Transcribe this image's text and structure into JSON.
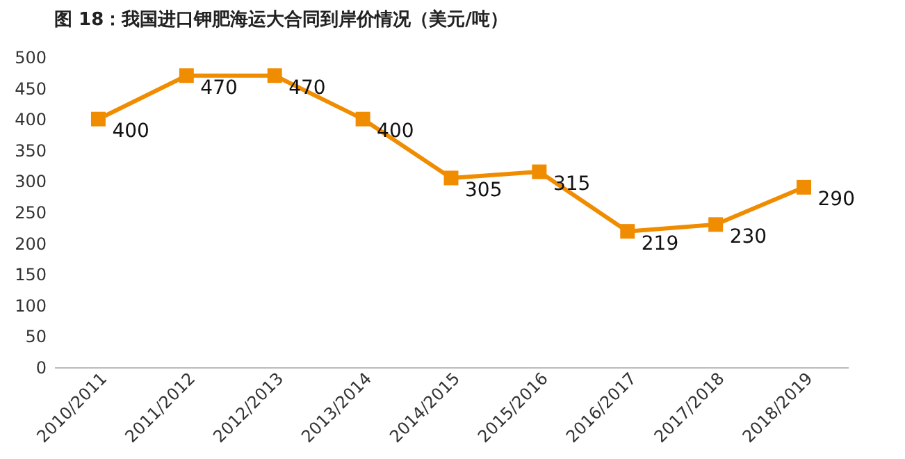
{
  "chart_data": {
    "type": "line",
    "title": "图 18：我国进口钾肥海运大合同到岸价情况（美元/吨）",
    "categories": [
      "2010/2011",
      "2011/2012",
      "2012/2013",
      "2013/2014",
      "2014/2015",
      "2015/2016",
      "2016/2017",
      "2017/2018",
      "2018/2019"
    ],
    "series": [
      {
        "color": "#f08c00",
        "values": [
          400,
          470,
          470,
          400,
          305,
          315,
          219,
          230,
          290
        ]
      }
    ],
    "ylim": [
      0,
      500
    ],
    "yticks": [
      0,
      50,
      100,
      150,
      200,
      250,
      300,
      350,
      400,
      450,
      500
    ],
    "grid": false,
    "marker": "square",
    "line_style": "solid",
    "data_labels": true
  }
}
